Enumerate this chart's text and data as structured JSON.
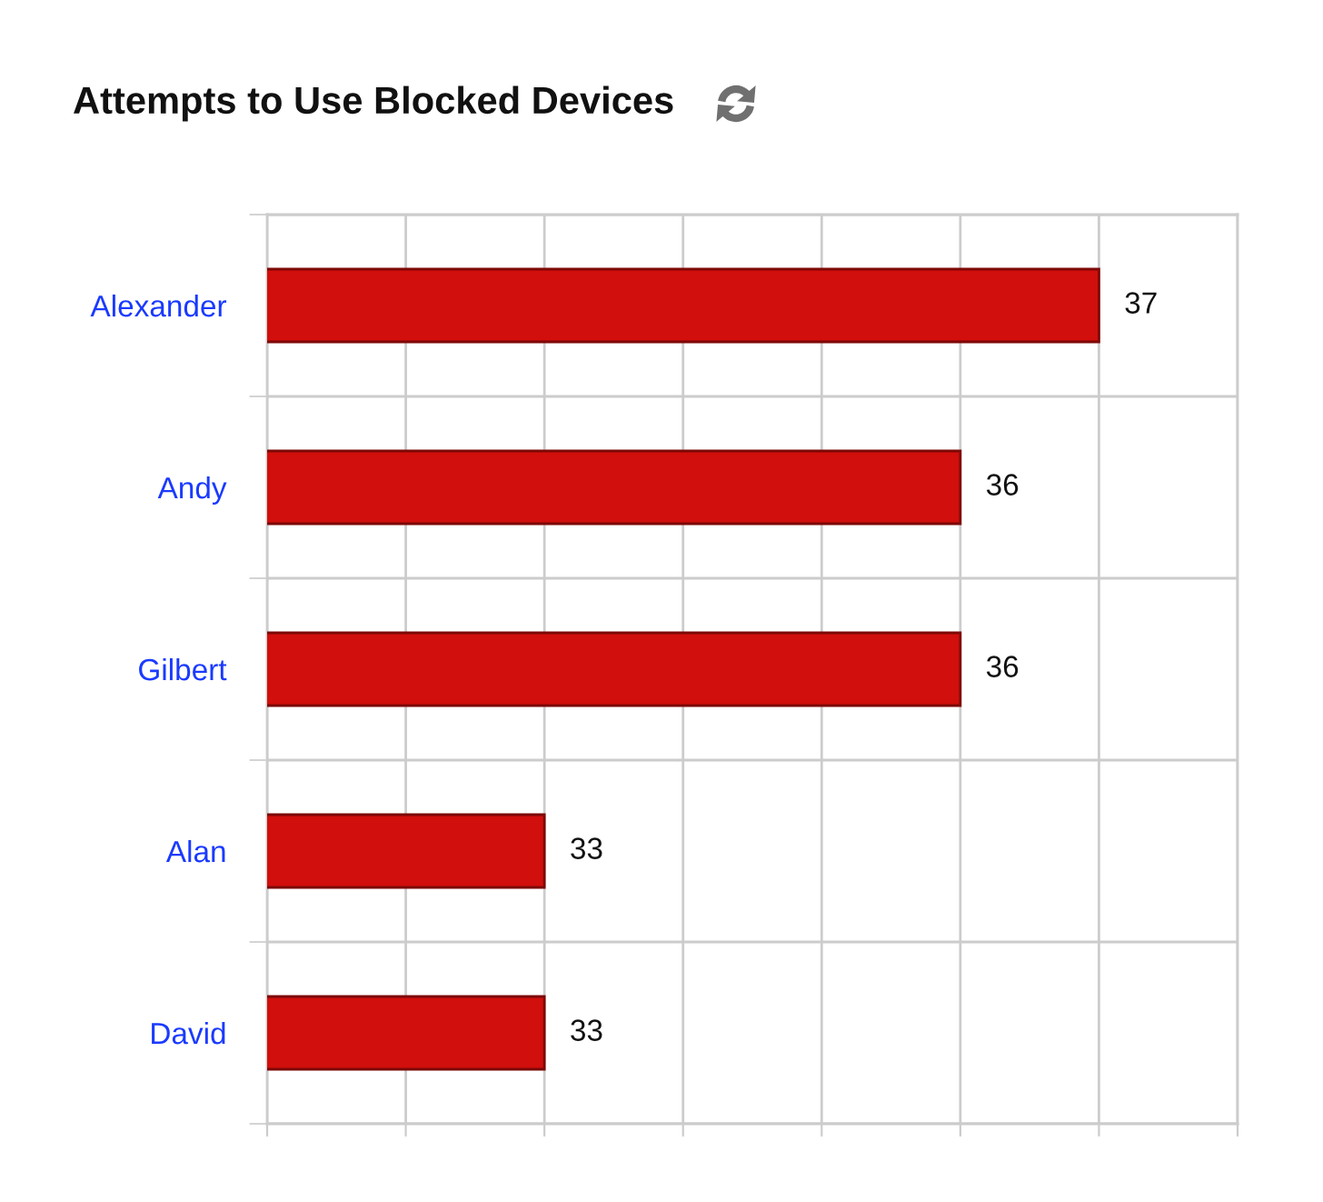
{
  "chart_data": {
    "type": "bar",
    "orientation": "horizontal",
    "title": "Attempts to Use Blocked Devices",
    "categories": [
      "Alexander",
      "Andy",
      "Gilbert",
      "Alan",
      "David"
    ],
    "values": [
      37,
      36,
      36,
      33,
      33
    ],
    "color": "#d10f0c",
    "xlim": [
      31,
      38
    ],
    "xticks": [
      {
        "value": 31,
        "label": null
      },
      {
        "value": 32,
        "label": null
      },
      {
        "value": 33,
        "label": null
      },
      {
        "value": 34,
        "label": null
      },
      {
        "value": 35,
        "label": null
      },
      {
        "value": 36,
        "label": null
      },
      {
        "value": 37,
        "label": null
      },
      {
        "value": 38,
        "label": null
      }
    ],
    "tick_labels": "y",
    "grid": true,
    "data_labels": true
  }
}
